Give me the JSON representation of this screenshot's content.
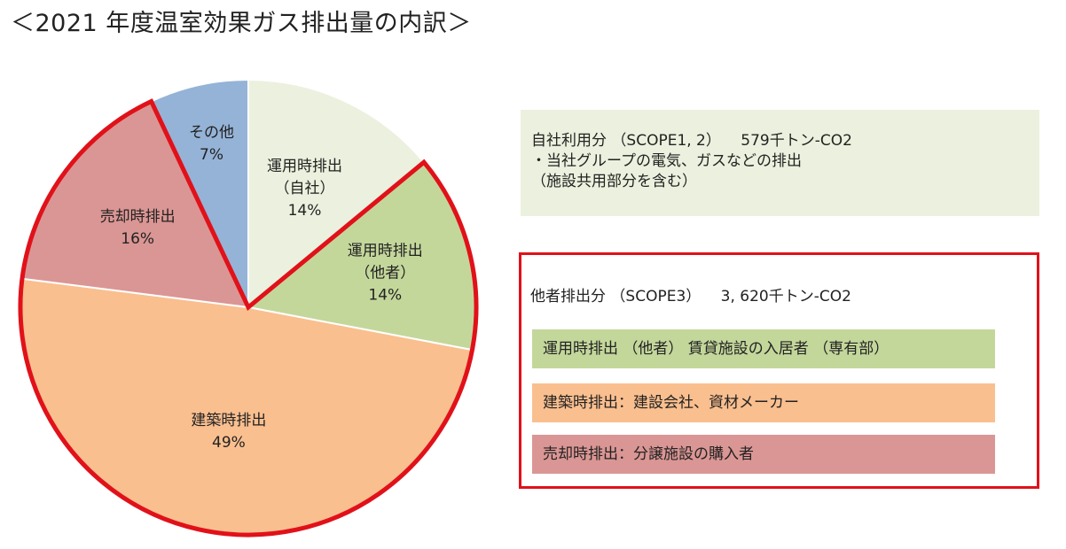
{
  "title": "＜2021 年度温室効果ガス排出量の内訳＞",
  "chart_data": {
    "type": "pie",
    "slices": [
      {
        "label_lines": [
          "運用時排出",
          "（自社）"
        ],
        "value": 14,
        "value_label": "14%",
        "color": "#ebf1de"
      },
      {
        "label_lines": [
          "運用時排出",
          "（他者）"
        ],
        "value": 14,
        "value_label": "14%",
        "color": "#c4d79b"
      },
      {
        "label_lines": [
          "建築時排出"
        ],
        "value": 49,
        "value_label": "49%",
        "color": "#fabf8f"
      },
      {
        "label_lines": [
          "売却時排出"
        ],
        "value": 16,
        "value_label": "16%",
        "color": "#da9694"
      },
      {
        "label_lines": [
          "その他"
        ],
        "value": 7,
        "value_label": "7%",
        "color": "#95b3d7"
      }
    ],
    "highlight_color": "#e1111a"
  },
  "self_box": {
    "heading": "自社利用分 （SCOPE1, 2） 　579千トン-CO2",
    "line1": "・当社グループの電気、ガスなどの排出",
    "line2": "（施設共用部分を含む）"
  },
  "other_box": {
    "heading": "他者排出分 （SCOPE3） 　3, 620千トン-CO2",
    "items": [
      "運用時排出 （他者） 賃貸施設の入居者 （専有部）",
      "建築時排出：建設会社、資材メーカー",
      "売却時排出：分譲施設の購入者"
    ]
  }
}
